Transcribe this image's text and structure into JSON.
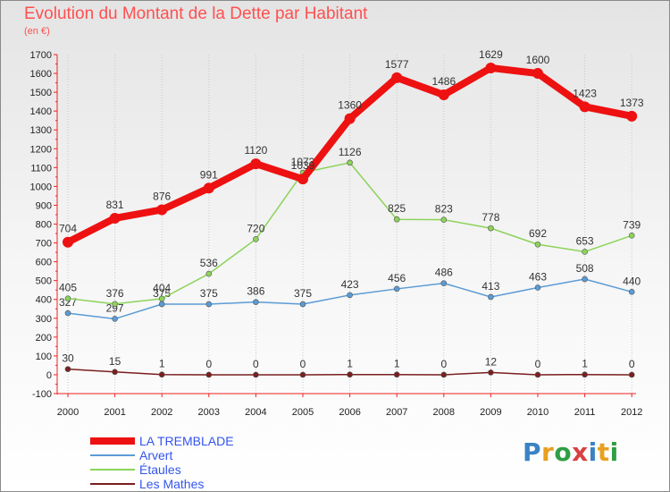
{
  "title": "Evolution du Montant de la Dette par Habitant",
  "subtitle": "(en €)",
  "logo": {
    "text": "Proxiti",
    "colors": [
      "#3b82c4",
      "#e8a020",
      "#2f9e44",
      "#d94141",
      "#3b82c4",
      "#e8a020",
      "#2f9e44"
    ]
  },
  "chart_data": {
    "type": "line",
    "x": [
      "2000",
      "2001",
      "2002",
      "2003",
      "2004",
      "2005",
      "2006",
      "2007",
      "2008",
      "2009",
      "2010",
      "2011",
      "2012"
    ],
    "ylim": [
      -100,
      1700
    ],
    "yticks": [
      -100,
      0,
      100,
      200,
      300,
      400,
      500,
      600,
      700,
      800,
      900,
      1000,
      1100,
      1200,
      1300,
      1400,
      1500,
      1600,
      1700
    ],
    "grid": "vertical",
    "legend_position": "bottom-left",
    "series": [
      {
        "name": "LA TREMBLADE",
        "color": "#ee1111",
        "values": [
          704,
          831,
          876,
          991,
          1120,
          1039,
          1360,
          1577,
          1486,
          1629,
          1600,
          1423,
          1373
        ]
      },
      {
        "name": "Arvert",
        "color": "#5b9bd5",
        "values": [
          327,
          297,
          375,
          375,
          386,
          375,
          423,
          456,
          486,
          413,
          463,
          508,
          440
        ]
      },
      {
        "name": "Étaules",
        "color": "#8cd35a",
        "values": [
          405,
          376,
          404,
          536,
          720,
          1073,
          1126,
          825,
          823,
          778,
          692,
          653,
          739
        ]
      },
      {
        "name": "Les Mathes",
        "color": "#7a1f1f",
        "values": [
          30,
          15,
          1,
          0,
          0,
          0,
          1,
          1,
          0,
          12,
          0,
          1,
          0
        ]
      }
    ]
  }
}
